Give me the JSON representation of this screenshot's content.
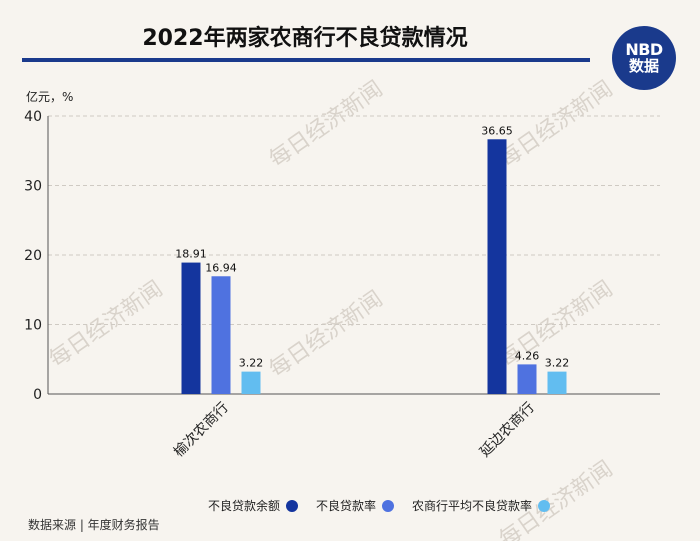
{
  "header": {
    "title": "2022年两家农商行不良贷款情况",
    "logo_top": "NBD",
    "logo_bottom": "数据"
  },
  "watermark": "每日经济新闻",
  "footer": {
    "source": "数据来源 | 年度财务报告"
  },
  "colors": {
    "background": "#f7f4ef",
    "accent": "#1a3a8c"
  },
  "chart_data": {
    "type": "bar",
    "title": "2022年两家农商行不良贷款情况",
    "unit_label": "亿元，%",
    "categories": [
      "榆次农商行",
      "延边农商行"
    ],
    "series": [
      {
        "name": "不良贷款余额",
        "values": [
          18.91,
          36.65
        ],
        "color": "#14359e"
      },
      {
        "name": "不良贷款率",
        "values": [
          16.94,
          4.26
        ],
        "color": "#4f72e0"
      },
      {
        "name": "农商行平均不良贷款率",
        "values": [
          3.22,
          3.22
        ],
        "color": "#62bdf0"
      }
    ],
    "ylim": [
      0,
      40
    ],
    "yticks": [
      0,
      10,
      20,
      30,
      40
    ],
    "grid": true,
    "legend_position": "bottom"
  }
}
